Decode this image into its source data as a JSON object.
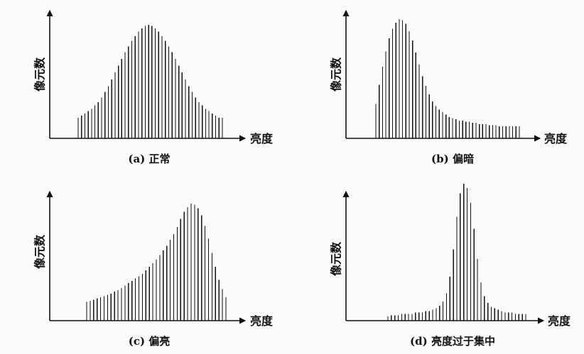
{
  "chart_data": [
    {
      "type": "bar",
      "panel": "a",
      "caption": "(a) 正常",
      "xlabel": "亮度",
      "ylabel": "像元数",
      "ylim": [
        0,
        1
      ],
      "values": [
        0.18,
        0.2,
        0.22,
        0.24,
        0.26,
        0.29,
        0.32,
        0.36,
        0.41,
        0.46,
        0.52,
        0.58,
        0.64,
        0.7,
        0.76,
        0.81,
        0.86,
        0.9,
        0.94,
        0.97,
        0.99,
        1.0,
        0.99,
        0.97,
        0.94,
        0.9,
        0.86,
        0.81,
        0.76,
        0.7,
        0.64,
        0.58,
        0.52,
        0.46,
        0.41,
        0.36,
        0.32,
        0.29,
        0.26,
        0.24,
        0.22,
        0.2,
        0.18,
        0.18
      ]
    },
    {
      "type": "bar",
      "panel": "b",
      "caption": "(b) 偏暗",
      "xlabel": "亮度",
      "ylabel": "像元数",
      "ylim": [
        0,
        1
      ],
      "values": [
        0.29,
        0.45,
        0.6,
        0.73,
        0.84,
        0.92,
        0.97,
        1.0,
        0.99,
        0.96,
        0.9,
        0.82,
        0.72,
        0.62,
        0.52,
        0.44,
        0.37,
        0.31,
        0.27,
        0.24,
        0.22,
        0.2,
        0.18,
        0.17,
        0.16,
        0.15,
        0.15,
        0.14,
        0.14,
        0.13,
        0.13,
        0.12,
        0.12,
        0.12,
        0.11,
        0.11,
        0.11,
        0.1,
        0.1,
        0.1,
        0.1,
        0.1,
        0.1,
        0.1
      ]
    },
    {
      "type": "bar",
      "panel": "c",
      "caption": "(c) 偏亮",
      "xlabel": "亮度",
      "ylabel": "像元数",
      "ylim": [
        0,
        1
      ],
      "values": [
        0.16,
        0.17,
        0.18,
        0.19,
        0.2,
        0.21,
        0.22,
        0.23,
        0.25,
        0.26,
        0.28,
        0.3,
        0.32,
        0.34,
        0.36,
        0.38,
        0.4,
        0.43,
        0.46,
        0.49,
        0.52,
        0.56,
        0.6,
        0.64,
        0.69,
        0.74,
        0.8,
        0.87,
        0.93,
        0.97,
        1.0,
        0.99,
        0.96,
        0.9,
        0.81,
        0.7,
        0.58,
        0.46,
        0.35,
        0.27,
        0.2
      ]
    },
    {
      "type": "bar",
      "panel": "d",
      "caption": "(d) 亮度过于集中",
      "xlabel": "亮度",
      "ylabel": "像元数",
      "ylim": [
        0,
        1
      ],
      "values": [
        0.03,
        0.04,
        0.04,
        0.04,
        0.05,
        0.05,
        0.05,
        0.05,
        0.06,
        0.06,
        0.06,
        0.07,
        0.07,
        0.08,
        0.09,
        0.11,
        0.14,
        0.2,
        0.32,
        0.52,
        0.76,
        0.93,
        1.0,
        0.97,
        0.86,
        0.67,
        0.45,
        0.28,
        0.18,
        0.13,
        0.1,
        0.09,
        0.08,
        0.07,
        0.06,
        0.06,
        0.06,
        0.05,
        0.05,
        0.05,
        0.05
      ]
    }
  ],
  "colors": {
    "ink": "#111111",
    "paper": "#fbfbfb"
  }
}
